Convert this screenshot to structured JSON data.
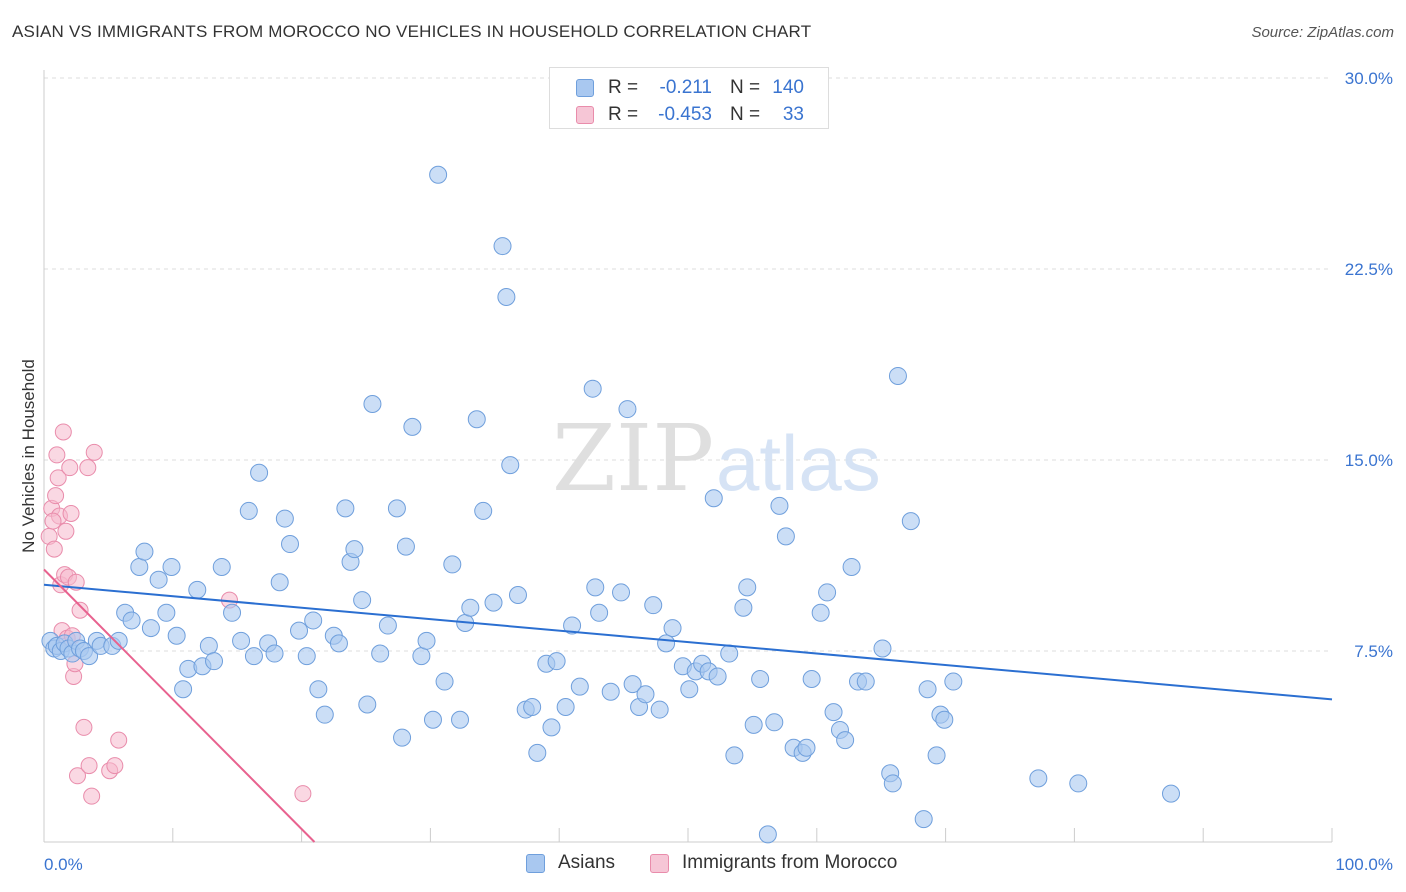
{
  "title": "ASIAN VS IMMIGRANTS FROM MOROCCO NO VEHICLES IN HOUSEHOLD CORRELATION CHART",
  "source": "Source: ZipAtlas.com",
  "watermark": {
    "zip": "ZIP",
    "atlas": "atlas"
  },
  "colors": {
    "asian_fill": "#a9c8f0",
    "asian_stroke": "#6f9fdc",
    "asian_line": "#2b6fd1",
    "morocco_fill": "#f6b8cc",
    "morocco_stroke": "#e98cab",
    "morocco_line": "#e8628f",
    "axis_text": "#3a74d0",
    "grid": "#dddddd"
  },
  "legend": {
    "rows": [
      {
        "r_label": "R =",
        "r_value": "-0.211",
        "n_label": "N =",
        "n_value": "140"
      },
      {
        "r_label": "R =",
        "r_value": "-0.453",
        "n_label": "N =",
        "n_value": "33"
      }
    ]
  },
  "bottom_legend": [
    "Asians",
    "Immigrants from Morocco"
  ],
  "chart_data": {
    "type": "scatter",
    "title": "ASIAN VS IMMIGRANTS FROM MOROCCO NO VEHICLES IN HOUSEHOLD CORRELATION CHART",
    "xlabel": "",
    "ylabel": "No Vehicles in Household",
    "xlim": [
      0,
      100
    ],
    "ylim": [
      0,
      30
    ],
    "x_tick_labels": [
      "0.0%",
      "100.0%"
    ],
    "y_ticks": [
      7.5,
      15.0,
      22.5,
      30.0
    ],
    "y_tick_labels": [
      "7.5%",
      "15.0%",
      "22.5%",
      "30.0%"
    ],
    "grid": true,
    "legend_position": "top-center",
    "series": [
      {
        "name": "Asians",
        "r": -0.211,
        "n": 140,
        "trend": {
          "x": [
            0,
            100
          ],
          "y": [
            10.1,
            5.6
          ]
        },
        "points": [
          [
            0.5,
            7.9
          ],
          [
            0.8,
            7.6
          ],
          [
            1.0,
            7.7
          ],
          [
            1.3,
            7.5
          ],
          [
            1.6,
            7.8
          ],
          [
            1.9,
            7.6
          ],
          [
            2.2,
            7.4
          ],
          [
            2.5,
            7.9
          ],
          [
            2.8,
            7.6
          ],
          [
            3.1,
            7.5
          ],
          [
            3.5,
            7.3
          ],
          [
            4.1,
            7.9
          ],
          [
            4.4,
            7.7
          ],
          [
            5.3,
            7.7
          ],
          [
            5.8,
            7.9
          ],
          [
            6.3,
            9.0
          ],
          [
            6.8,
            8.7
          ],
          [
            7.4,
            10.8
          ],
          [
            7.8,
            11.4
          ],
          [
            8.3,
            8.4
          ],
          [
            8.9,
            10.3
          ],
          [
            9.5,
            9.0
          ],
          [
            9.9,
            10.8
          ],
          [
            10.3,
            8.1
          ],
          [
            10.8,
            6.0
          ],
          [
            11.2,
            6.8
          ],
          [
            11.9,
            9.9
          ],
          [
            12.3,
            6.9
          ],
          [
            12.8,
            7.7
          ],
          [
            13.2,
            7.1
          ],
          [
            13.8,
            10.8
          ],
          [
            14.6,
            9.0
          ],
          [
            15.3,
            7.9
          ],
          [
            15.9,
            13.0
          ],
          [
            16.3,
            7.3
          ],
          [
            16.7,
            14.5
          ],
          [
            17.4,
            7.8
          ],
          [
            17.9,
            7.4
          ],
          [
            18.3,
            10.2
          ],
          [
            18.7,
            12.7
          ],
          [
            19.1,
            11.7
          ],
          [
            19.8,
            8.3
          ],
          [
            20.4,
            7.3
          ],
          [
            20.9,
            8.7
          ],
          [
            21.3,
            6.0
          ],
          [
            21.8,
            5.0
          ],
          [
            22.5,
            8.1
          ],
          [
            22.9,
            7.8
          ],
          [
            23.4,
            13.1
          ],
          [
            23.8,
            11.0
          ],
          [
            24.1,
            11.5
          ],
          [
            24.7,
            9.5
          ],
          [
            25.1,
            5.4
          ],
          [
            25.5,
            17.2
          ],
          [
            26.1,
            7.4
          ],
          [
            26.7,
            8.5
          ],
          [
            27.4,
            13.1
          ],
          [
            27.8,
            4.1
          ],
          [
            28.1,
            11.6
          ],
          [
            28.6,
            16.3
          ],
          [
            29.3,
            7.3
          ],
          [
            29.7,
            7.9
          ],
          [
            30.2,
            4.8
          ],
          [
            30.6,
            26.2
          ],
          [
            31.1,
            6.3
          ],
          [
            31.7,
            10.9
          ],
          [
            32.3,
            4.8
          ],
          [
            32.7,
            8.6
          ],
          [
            33.1,
            9.2
          ],
          [
            33.6,
            16.6
          ],
          [
            34.1,
            13.0
          ],
          [
            34.9,
            9.4
          ],
          [
            35.6,
            23.4
          ],
          [
            35.9,
            21.4
          ],
          [
            36.2,
            14.8
          ],
          [
            36.8,
            9.7
          ],
          [
            37.4,
            5.2
          ],
          [
            37.9,
            5.3
          ],
          [
            38.3,
            3.5
          ],
          [
            39.0,
            7.0
          ],
          [
            39.4,
            4.5
          ],
          [
            39.8,
            7.1
          ],
          [
            40.5,
            5.3
          ],
          [
            41.0,
            8.5
          ],
          [
            41.6,
            6.1
          ],
          [
            42.6,
            17.8
          ],
          [
            42.8,
            10.0
          ],
          [
            43.1,
            9.0
          ],
          [
            44.0,
            5.9
          ],
          [
            44.8,
            9.8
          ],
          [
            45.3,
            17.0
          ],
          [
            45.7,
            6.2
          ],
          [
            46.2,
            5.3
          ],
          [
            46.7,
            5.8
          ],
          [
            47.3,
            9.3
          ],
          [
            47.8,
            5.2
          ],
          [
            48.3,
            7.8
          ],
          [
            48.8,
            8.4
          ],
          [
            49.6,
            6.9
          ],
          [
            50.1,
            6.0
          ],
          [
            50.6,
            6.7
          ],
          [
            51.1,
            7.0
          ],
          [
            51.6,
            6.7
          ],
          [
            52.0,
            13.5
          ],
          [
            52.3,
            6.5
          ],
          [
            53.2,
            7.4
          ],
          [
            53.6,
            3.4
          ],
          [
            54.3,
            9.2
          ],
          [
            54.6,
            10.0
          ],
          [
            55.1,
            4.6
          ],
          [
            55.6,
            6.4
          ],
          [
            56.2,
            0.3
          ],
          [
            56.7,
            4.7
          ],
          [
            57.1,
            13.2
          ],
          [
            57.6,
            12.0
          ],
          [
            58.2,
            3.7
          ],
          [
            58.9,
            3.5
          ],
          [
            59.2,
            3.7
          ],
          [
            59.6,
            6.4
          ],
          [
            60.3,
            9.0
          ],
          [
            60.8,
            9.8
          ],
          [
            61.3,
            5.1
          ],
          [
            61.8,
            4.4
          ],
          [
            62.2,
            4.0
          ],
          [
            62.7,
            10.8
          ],
          [
            63.2,
            6.3
          ],
          [
            63.8,
            6.3
          ],
          [
            65.1,
            7.6
          ],
          [
            65.7,
            2.7
          ],
          [
            65.9,
            2.3
          ],
          [
            66.3,
            18.3
          ],
          [
            67.3,
            12.6
          ],
          [
            68.3,
            0.9
          ],
          [
            68.6,
            6.0
          ],
          [
            69.3,
            3.4
          ],
          [
            69.6,
            5.0
          ],
          [
            69.9,
            4.8
          ],
          [
            70.6,
            6.3
          ],
          [
            77.2,
            2.5
          ],
          [
            80.3,
            2.3
          ],
          [
            87.5,
            1.9
          ]
        ]
      },
      {
        "name": "Immigrants from Morocco",
        "r": -0.453,
        "n": 33,
        "trend": {
          "x": [
            0,
            21
          ],
          "y": [
            10.7,
            0
          ]
        },
        "points": [
          [
            0.4,
            12.0
          ],
          [
            0.6,
            13.1
          ],
          [
            0.8,
            11.5
          ],
          [
            0.9,
            13.6
          ],
          [
            1.0,
            15.2
          ],
          [
            1.1,
            14.3
          ],
          [
            1.2,
            12.8
          ],
          [
            1.3,
            10.1
          ],
          [
            1.4,
            8.3
          ],
          [
            1.5,
            16.1
          ],
          [
            1.6,
            10.5
          ],
          [
            1.7,
            12.2
          ],
          [
            1.8,
            8.0
          ],
          [
            1.9,
            10.4
          ],
          [
            2.0,
            14.7
          ],
          [
            2.1,
            12.9
          ],
          [
            2.3,
            6.5
          ],
          [
            2.4,
            7.0
          ],
          [
            2.5,
            10.2
          ],
          [
            2.6,
            2.6
          ],
          [
            2.8,
            9.1
          ],
          [
            3.1,
            4.5
          ],
          [
            3.4,
            14.7
          ],
          [
            3.5,
            3.0
          ],
          [
            3.7,
            1.8
          ],
          [
            3.9,
            15.3
          ],
          [
            5.1,
            2.8
          ],
          [
            5.5,
            3.0
          ],
          [
            5.8,
            4.0
          ],
          [
            14.4,
            9.5
          ],
          [
            20.1,
            1.9
          ],
          [
            0.7,
            12.6
          ],
          [
            2.2,
            8.1
          ]
        ]
      }
    ]
  }
}
